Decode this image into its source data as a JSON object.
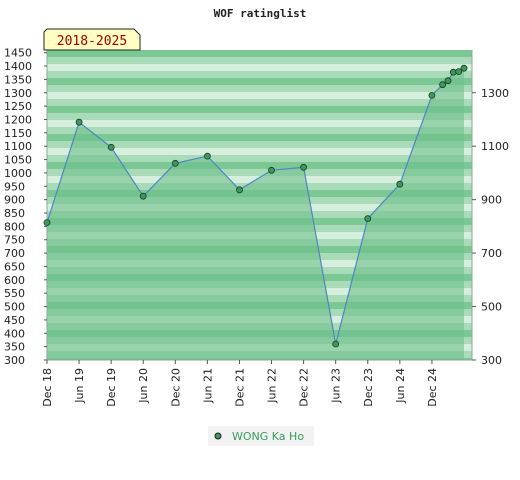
{
  "chart_data": {
    "type": "area",
    "title": "WOF ratinglist",
    "period_label": "2018-2025",
    "xlabel": "",
    "ylabel": "",
    "x_tick_labels": [
      "Dec 18",
      "Jun 19",
      "Dec 19",
      "Jun 20",
      "Dec 20",
      "Jun 21",
      "Dec 21",
      "Jun 22",
      "Dec 22",
      "Jun 23",
      "Dec 23",
      "Jun 24",
      "Dec 24"
    ],
    "ylim": [
      300,
      1460
    ],
    "left_ticks": [
      300,
      350,
      400,
      450,
      500,
      550,
      600,
      650,
      700,
      750,
      800,
      850,
      900,
      950,
      1000,
      1050,
      1100,
      1150,
      1200,
      1250,
      1300,
      1350,
      1400,
      1450
    ],
    "right_ticks": [
      300,
      500,
      700,
      900,
      1100,
      1300
    ],
    "grid": "horizontal bands",
    "legend_position": "bottom-center",
    "series": [
      {
        "name": "WONG Ka Ho",
        "color": "#3a9a5a",
        "fill_color": "#6ec08a",
        "line_color": "#4a86c8",
        "points": [
          {
            "x": "Dec 18",
            "y": 814
          },
          {
            "x": "Jun 19",
            "y": 1190
          },
          {
            "x": "Dec 19",
            "y": 1096
          },
          {
            "x": "Jun 20",
            "y": 913
          },
          {
            "x": "Dec 20",
            "y": 1036
          },
          {
            "x": "Jun 21",
            "y": 1063
          },
          {
            "x": "Dec 21",
            "y": 937
          },
          {
            "x": "Jun 22",
            "y": 1010
          },
          {
            "x": "Dec 22",
            "y": 1021
          },
          {
            "x": "Jun 23",
            "y": 360
          },
          {
            "x": "Dec 23",
            "y": 829
          },
          {
            "x": "Jun 24",
            "y": 958
          },
          {
            "x": "Dec 24",
            "y": 1290
          },
          {
            "x": "Feb 25",
            "y": 1330
          },
          {
            "x": "Mar 25",
            "y": 1345
          },
          {
            "x": "Apr 25",
            "y": 1377
          },
          {
            "x": "May 25",
            "y": 1379
          },
          {
            "x": "Jun 25",
            "y": 1392
          }
        ]
      }
    ]
  }
}
